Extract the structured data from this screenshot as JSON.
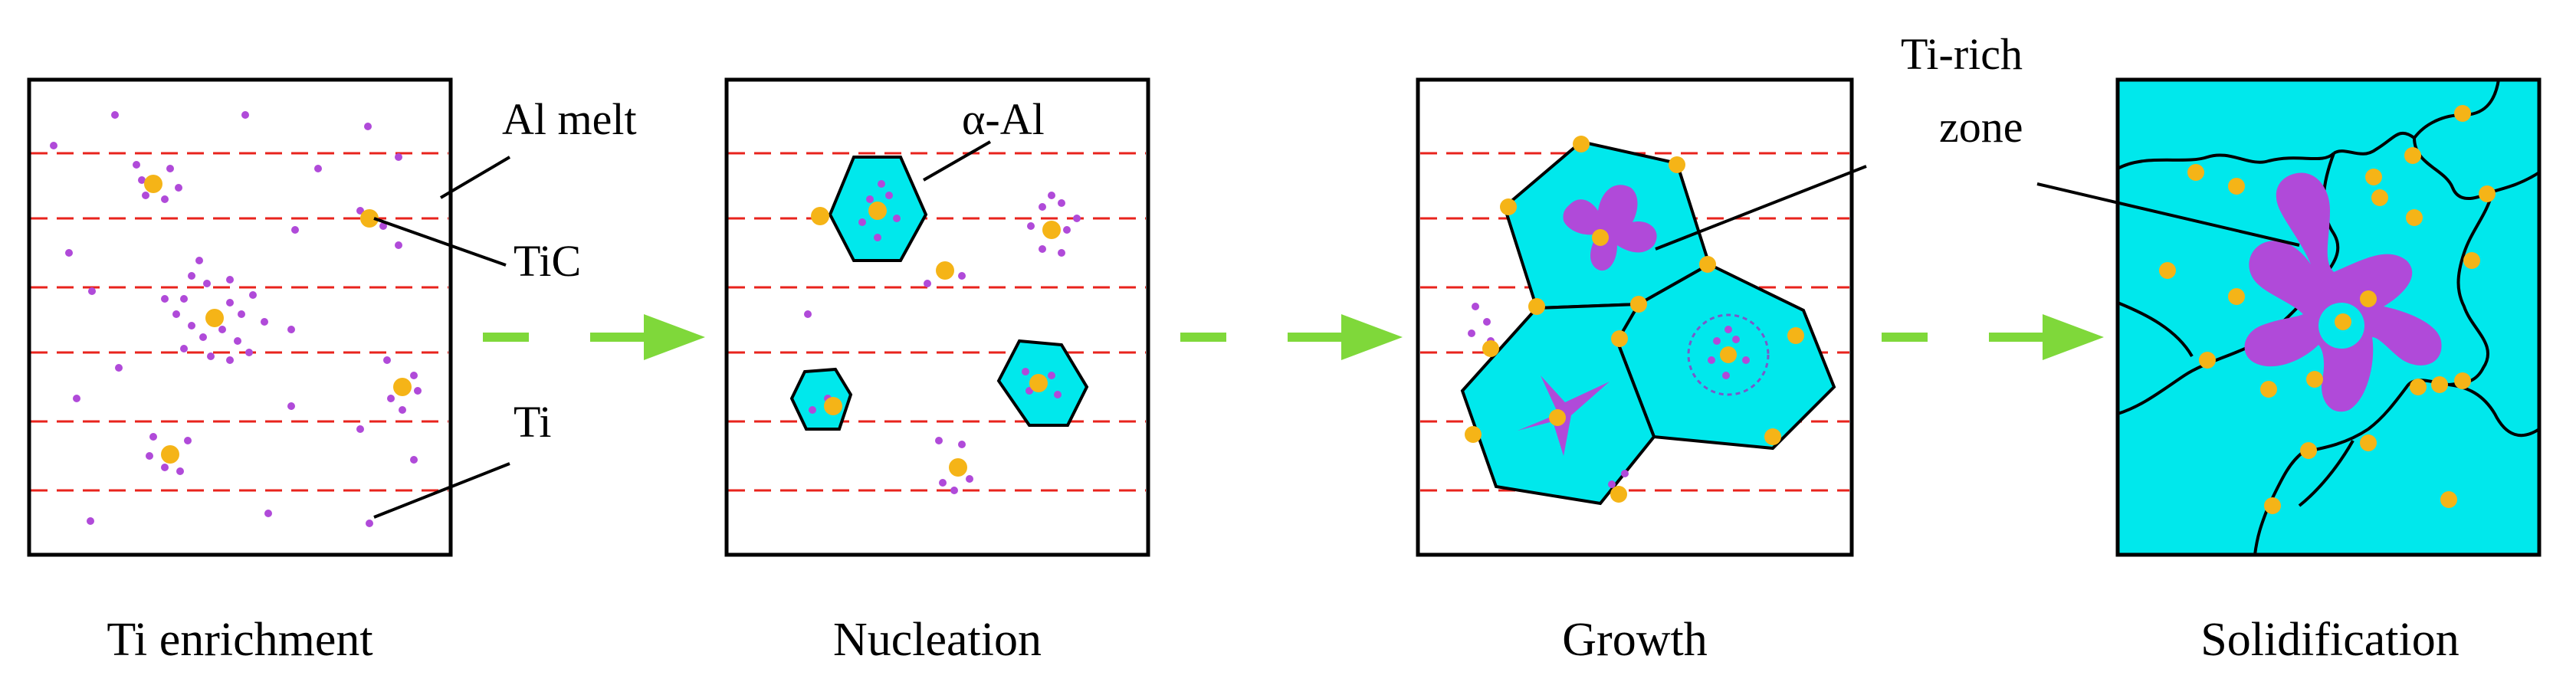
{
  "panels": [
    {
      "caption": "Ti enrichment"
    },
    {
      "caption": "Nucleation"
    },
    {
      "caption": "Growth"
    },
    {
      "caption": "Solidification"
    }
  ],
  "labels": {
    "al_melt": "Al melt",
    "tic": "TiC",
    "ti": "Ti",
    "alpha_al": "α-Al",
    "ti_rich_line1": "Ti-rich",
    "ti_rich_line2": "zone"
  },
  "colors": {
    "melt_line": "#e8231c",
    "tic_particle": "#f5b417",
    "ti_atom": "#b04ad9",
    "alpha_al_fill": "#00e8ec",
    "arrow": "#7fd83a",
    "outline": "#000000"
  }
}
